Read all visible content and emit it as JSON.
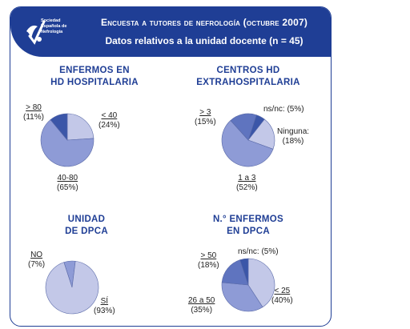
{
  "header": {
    "logo_text": "Sociedad\nEspañola de\nNefrología",
    "title": "Encuesta a tutores de nefrología (octubre 2007)",
    "subtitle": "Datos relativos a la unidad docente (n = 45)"
  },
  "colors": {
    "brand": "#1f3e95",
    "slice_light": "#c3c8e8",
    "slice_mid": "#8e9bd6",
    "slice_dark": "#3b56a8"
  },
  "chart_data": [
    {
      "type": "pie",
      "title": "ENFERMOS EN\nHD HOSPITALARIA",
      "slices": [
        {
          "label": "< 40",
          "value": 24,
          "value_text": "(24%)",
          "color": "#c3c8e8"
        },
        {
          "label": "40-80",
          "value": 65,
          "value_text": "(65%)",
          "color": "#8e9bd6"
        },
        {
          "label": "> 80",
          "value": 11,
          "value_text": "(11%)",
          "color": "#3b56a8"
        }
      ]
    },
    {
      "type": "pie",
      "title": "CENTROS HD\nEXTRAHOSPITALARIA",
      "slices": [
        {
          "label": "ns/nc:",
          "value": 5,
          "value_text": "(5%)",
          "color": "#3b56a8"
        },
        {
          "label": "Ninguna:",
          "value": 18,
          "value_text": "(18%)",
          "color": "#c3c8e8"
        },
        {
          "label": "1 a 3",
          "value": 52,
          "value_text": "(52%)",
          "color": "#8e9bd6"
        },
        {
          "label": "> 3",
          "value": 15,
          "value_text": "(15%)",
          "color": "#5f74bf"
        }
      ]
    },
    {
      "type": "pie",
      "title": "UNIDAD\nDE DPCA",
      "slices": [
        {
          "label": "NO",
          "value": 7,
          "value_text": "(7%)",
          "color": "#8e9bd6"
        },
        {
          "label": "SÍ",
          "value": 93,
          "value_text": "(93%)",
          "color": "#c3c8e8"
        }
      ]
    },
    {
      "type": "pie",
      "title": "N.° ENFERMOS\nEN DPCA",
      "slices": [
        {
          "label": "< 25",
          "value": 40,
          "value_text": "(40%)",
          "color": "#c3c8e8"
        },
        {
          "label": "26 a 50",
          "value": 35,
          "value_text": "(35%)",
          "color": "#8e9bd6"
        },
        {
          "label": "> 50",
          "value": 18,
          "value_text": "(18%)",
          "color": "#5f74bf"
        },
        {
          "label": "ns/nc:",
          "value": 5,
          "value_text": "(5%)",
          "color": "#3b56a8"
        }
      ]
    }
  ]
}
